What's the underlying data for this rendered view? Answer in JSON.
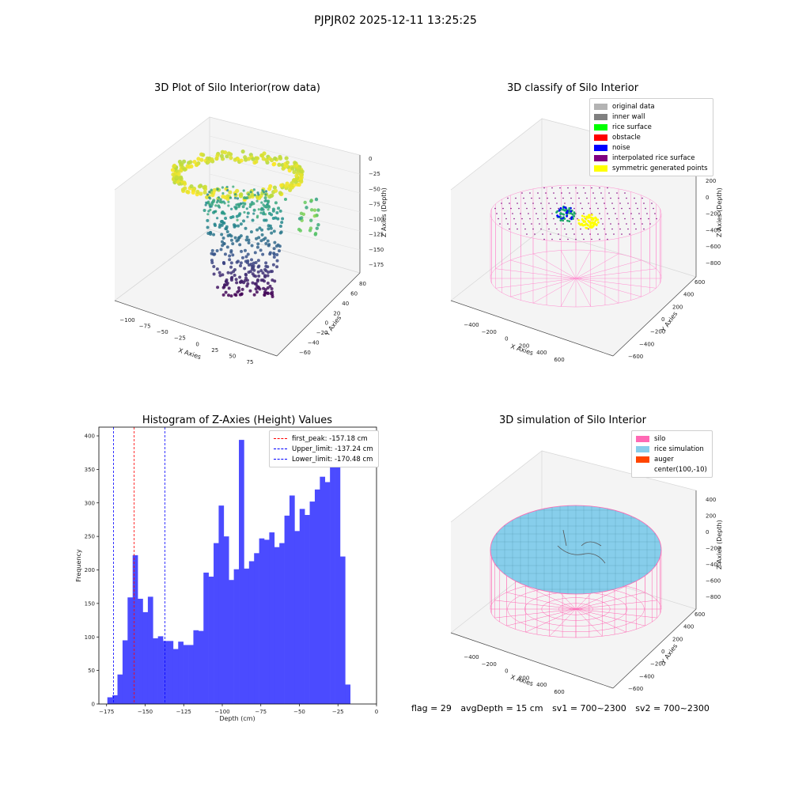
{
  "figure": {
    "suptitle": "PJPJR02 2025-12-11 13:25:25",
    "footer": {
      "flag": "flag = 29",
      "avg_depth": "avgDepth = 15 cm",
      "sv1": "sv1 = 700~2300",
      "sv2": "sv2 = 700~2300"
    }
  },
  "chart_data": [
    {
      "type": "scatter",
      "title": "3D Plot of Silo Interior(row data)",
      "xlabel": "X Axies",
      "ylabel": "Y Axies",
      "zlabel": "Z Axies (Depth)",
      "x_ticks": [
        "−100",
        "−75",
        "−50",
        "−25",
        "0",
        "25",
        "50",
        "75"
      ],
      "y_ticks": [
        "−60",
        "−40",
        "−20",
        "0",
        "20",
        "40",
        "60",
        "80"
      ],
      "z_ticks": [
        "0",
        "−25",
        "−50",
        "−75",
        "−100",
        "−125",
        "−150",
        "−175"
      ],
      "colormap": "viridis"
    },
    {
      "type": "scatter",
      "title": "3D classify of Silo Interior",
      "xlabel": "X Axies",
      "ylabel": "Y Axies",
      "zlabel": "Z Axies (Depth)",
      "x_ticks": [
        "−400",
        "−200",
        "0",
        "200",
        "400",
        "600"
      ],
      "y_ticks": [
        "−600",
        "−400",
        "−200",
        "0",
        "200",
        "400",
        "600"
      ],
      "z_ticks": [
        "200",
        "0",
        "−200",
        "−400",
        "−600",
        "−800"
      ],
      "legend": [
        {
          "label": "original data",
          "color": "#b3b3b3"
        },
        {
          "label": "inner wall",
          "color": "#808080"
        },
        {
          "label": "rice surface",
          "color": "#00ff00"
        },
        {
          "label": "obstacle",
          "color": "#ff0000"
        },
        {
          "label": "noise",
          "color": "#0000ff"
        },
        {
          "label": "interpolated rice surface",
          "color": "#800080"
        },
        {
          "label": "symmetric generated points",
          "color": "#ffff00"
        }
      ]
    },
    {
      "type": "bar",
      "title": "Histogram of Z-Axies (Height) Values",
      "xlabel": "Depth (cm)",
      "ylabel": "Frequency",
      "xlim": [
        -180,
        0
      ],
      "ylim": [
        0,
        413
      ],
      "x_ticks": [
        "−175",
        "−150",
        "−125",
        "−100",
        "−75",
        "−50",
        "−25",
        "0"
      ],
      "y_ticks": [
        "0",
        "50",
        "100",
        "150",
        "200",
        "250",
        "300",
        "350",
        "400"
      ],
      "bar_color": "#4b4bff",
      "bin_start": -174.5,
      "bin_width": 3.28,
      "values": [
        10,
        13,
        44,
        95,
        159,
        222,
        157,
        137,
        160,
        98,
        101,
        94,
        94,
        82,
        93,
        88,
        88,
        110,
        109,
        196,
        190,
        240,
        296,
        250,
        185,
        201,
        394,
        202,
        213,
        225,
        247,
        245,
        256,
        234,
        240,
        281,
        311,
        258,
        291,
        282,
        302,
        320,
        339,
        331,
        359,
        355,
        220,
        29
      ],
      "vlines": [
        {
          "label": "first_peak: -157.18 cm",
          "x": -157.18,
          "color": "#ff0000"
        },
        {
          "label": "Upper_limit: -137.24 cm",
          "x": -137.24,
          "color": "#0000ff"
        },
        {
          "label": "Lower_limit: -170.48 cm",
          "x": -170.48,
          "color": "#0000ff"
        }
      ]
    },
    {
      "type": "area",
      "title": "3D simulation of Silo Interior",
      "xlabel": "X Axies",
      "ylabel": "Y Axies",
      "zlabel": "Z Axies (Depth)",
      "x_ticks": [
        "−400",
        "−200",
        "0",
        "200",
        "400",
        "600"
      ],
      "y_ticks": [
        "−600",
        "−400",
        "−200",
        "0",
        "200",
        "400",
        "600"
      ],
      "z_ticks": [
        "400",
        "200",
        "0",
        "−200",
        "−400",
        "−600",
        "−800"
      ],
      "legend": [
        {
          "label": "silo",
          "color": "#ff69b4"
        },
        {
          "label": "rice simulation",
          "color": "#87ceeb"
        },
        {
          "label": "auger",
          "color": "#ff4500"
        },
        {
          "label": "center(100,-10)",
          "color": ""
        }
      ]
    }
  ]
}
